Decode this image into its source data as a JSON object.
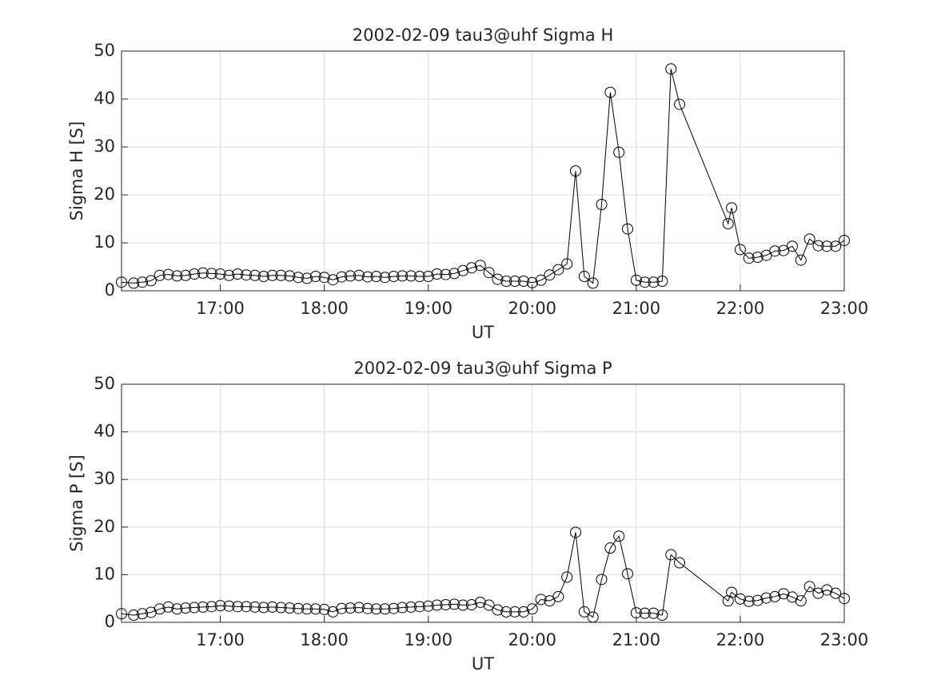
{
  "chart_data": [
    {
      "type": "line",
      "title": "2002-02-09  tau3@uhf Sigma H",
      "xlabel": "UT",
      "ylabel": "Sigma H [S]",
      "x": [
        16.05,
        16.1667,
        16.25,
        16.3333,
        16.4167,
        16.5,
        16.5833,
        16.6667,
        16.75,
        16.8333,
        16.9167,
        17,
        17.0833,
        17.1667,
        17.25,
        17.3333,
        17.4167,
        17.5,
        17.5833,
        17.6667,
        17.75,
        17.8333,
        17.9167,
        18,
        18.0833,
        18.1667,
        18.25,
        18.3333,
        18.4167,
        18.5,
        18.5833,
        18.6667,
        18.75,
        18.8333,
        18.9167,
        19,
        19.0833,
        19.1667,
        19.25,
        19.3333,
        19.4167,
        19.5,
        19.5833,
        19.6667,
        19.75,
        19.8333,
        19.9167,
        20,
        20.0833,
        20.1667,
        20.25,
        20.3333,
        20.4167,
        20.5,
        20.5833,
        20.6667,
        20.75,
        20.8333,
        20.9167,
        21,
        21.0833,
        21.1667,
        21.25,
        21.3333,
        21.4167,
        21.8833,
        21.9167,
        22,
        22.0833,
        22.1667,
        22.25,
        22.3333,
        22.4167,
        22.5,
        22.5833,
        22.6667,
        22.75,
        22.8333,
        22.9167,
        23
      ],
      "series": [
        {
          "name": "Sigma H",
          "color": "#000000",
          "values": [
            1.8,
            1.6,
            1.8,
            2.1,
            3.2,
            3.4,
            3.1,
            3.2,
            3.5,
            3.7,
            3.6,
            3.5,
            3.2,
            3.5,
            3.3,
            3.2,
            3.0,
            3.2,
            3.2,
            3.1,
            2.8,
            2.6,
            3.0,
            2.8,
            2.3,
            2.9,
            3.1,
            3.2,
            2.9,
            3.0,
            2.8,
            3.0,
            3.1,
            3.1,
            3.0,
            3.0,
            3.5,
            3.4,
            3.6,
            4.2,
            4.8,
            5.3,
            3.8,
            2.4,
            2.0,
            2.0,
            2.0,
            1.7,
            2.2,
            3.3,
            4.4,
            5.6,
            25.0,
            3.0,
            1.6,
            18.0,
            41.4,
            28.9,
            12.9,
            2.2,
            1.8,
            1.8,
            2.0,
            46.3,
            38.9,
            14.0,
            17.3,
            8.6,
            6.8,
            7.0,
            7.4,
            8.3,
            8.4,
            9.3,
            6.4,
            10.8,
            9.4,
            9.3,
            9.3,
            10.5
          ]
        }
      ],
      "xlim": [
        16.05,
        23
      ],
      "xticks": [
        {
          "value": 17,
          "label": "17:00"
        },
        {
          "value": 18,
          "label": "18:00"
        },
        {
          "value": 19,
          "label": "19:00"
        },
        {
          "value": 20,
          "label": "20:00"
        },
        {
          "value": 21,
          "label": "21:00"
        },
        {
          "value": 22,
          "label": "22:00"
        },
        {
          "value": 23,
          "label": "23:00"
        }
      ],
      "ylim": [
        0,
        50
      ],
      "yticks": [
        0,
        10,
        20,
        30,
        40,
        50
      ],
      "grid": true
    },
    {
      "type": "line",
      "title": "2002-02-09  tau3@uhf Sigma P",
      "xlabel": "UT",
      "ylabel": "Sigma P [S]",
      "x": [
        16.05,
        16.1667,
        16.25,
        16.3333,
        16.4167,
        16.5,
        16.5833,
        16.6667,
        16.75,
        16.8333,
        16.9167,
        17,
        17.0833,
        17.1667,
        17.25,
        17.3333,
        17.4167,
        17.5,
        17.5833,
        17.6667,
        17.75,
        17.8333,
        17.9167,
        18,
        18.0833,
        18.1667,
        18.25,
        18.3333,
        18.4167,
        18.5,
        18.5833,
        18.6667,
        18.75,
        18.8333,
        18.9167,
        19,
        19.0833,
        19.1667,
        19.25,
        19.3333,
        19.4167,
        19.5,
        19.5833,
        19.6667,
        19.75,
        19.8333,
        19.9167,
        20,
        20.0833,
        20.1667,
        20.25,
        20.3333,
        20.4167,
        20.5,
        20.5833,
        20.6667,
        20.75,
        20.8333,
        20.9167,
        21,
        21.0833,
        21.1667,
        21.25,
        21.3333,
        21.4167,
        21.8833,
        21.9167,
        22,
        22.0833,
        22.1667,
        22.25,
        22.3333,
        22.4167,
        22.5,
        22.5833,
        22.6667,
        22.75,
        22.8333,
        22.9167,
        23
      ],
      "series": [
        {
          "name": "Sigma P",
          "color": "#000000",
          "values": [
            1.8,
            1.5,
            1.8,
            2.1,
            2.8,
            3.2,
            2.8,
            3.0,
            3.1,
            3.2,
            3.3,
            3.5,
            3.4,
            3.3,
            3.3,
            3.2,
            3.1,
            3.2,
            3.1,
            3.0,
            2.9,
            2.8,
            2.8,
            2.7,
            2.2,
            2.9,
            3.0,
            3.1,
            2.9,
            2.8,
            2.8,
            2.9,
            3.1,
            3.2,
            3.3,
            3.4,
            3.6,
            3.7,
            3.8,
            3.6,
            3.7,
            4.2,
            3.6,
            2.6,
            2.2,
            2.2,
            2.2,
            2.8,
            4.8,
            4.5,
            5.4,
            9.5,
            18.9,
            2.2,
            1.1,
            9.0,
            15.6,
            18.1,
            10.2,
            2.0,
            1.9,
            1.9,
            1.5,
            14.2,
            12.5,
            4.5,
            6.3,
            4.9,
            4.4,
            4.6,
            5.1,
            5.4,
            6.0,
            5.3,
            4.5,
            7.5,
            6.1,
            6.8,
            6.1,
            5.0
          ]
        }
      ],
      "xlim": [
        16.05,
        23
      ],
      "xticks": [
        {
          "value": 17,
          "label": "17:00"
        },
        {
          "value": 18,
          "label": "18:00"
        },
        {
          "value": 19,
          "label": "19:00"
        },
        {
          "value": 20,
          "label": "20:00"
        },
        {
          "value": 21,
          "label": "21:00"
        },
        {
          "value": 22,
          "label": "22:00"
        },
        {
          "value": 23,
          "label": "23:00"
        }
      ],
      "ylim": [
        0,
        50
      ],
      "yticks": [
        0,
        10,
        20,
        30,
        40,
        50
      ],
      "grid": true
    }
  ]
}
